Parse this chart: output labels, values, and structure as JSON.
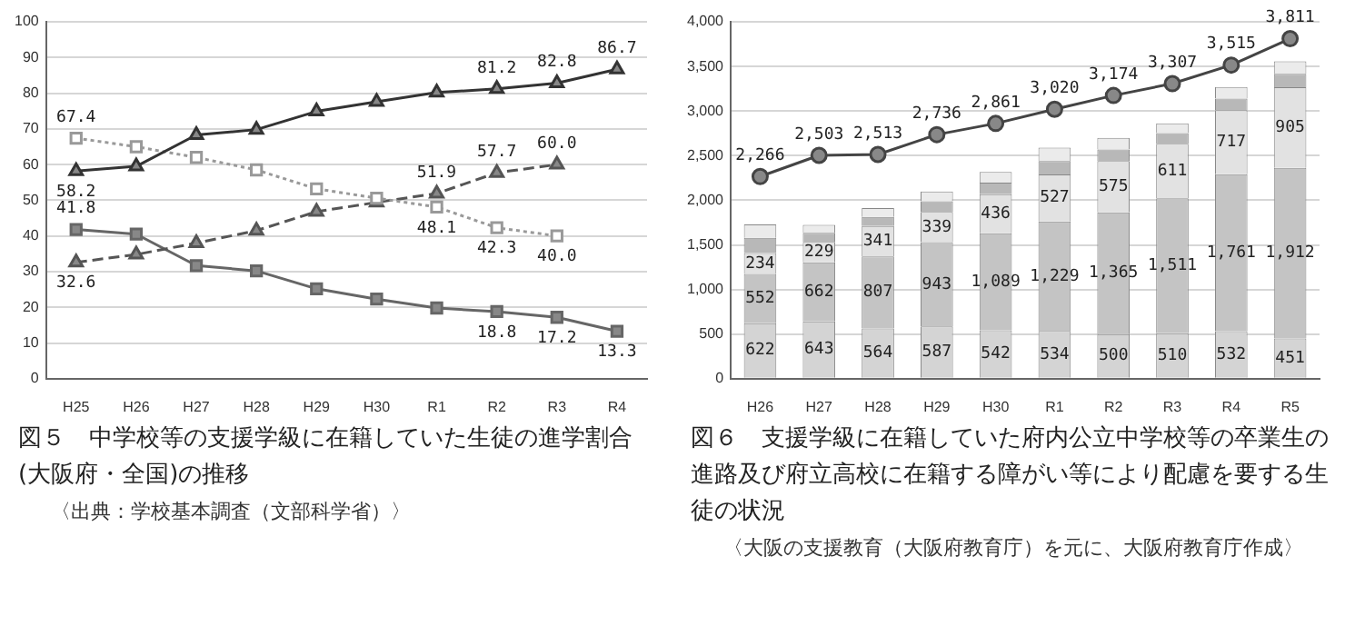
{
  "chart_data": [
    {
      "type": "line",
      "title": "図５　中学校等の支援学級に在籍していた生徒の進学割合(大阪府・全国)の推移",
      "annotations": [
        "〈出典：学校基本調査（文部科学省）〉"
      ],
      "categories": [
        "H25",
        "H26",
        "H27",
        "H28",
        "H29",
        "H30",
        "R1",
        "R2",
        "R3",
        "R4"
      ],
      "series": [
        {
          "color": "#333333",
          "marker": "triangle",
          "line_style": "solid",
          "values": [
            58.2,
            59.5,
            68.3,
            69.8,
            74.9,
            77.6,
            80.2,
            81.2,
            82.8,
            86.7
          ],
          "value_labels": [
            "58.2",
            null,
            null,
            null,
            null,
            null,
            null,
            "81.2",
            "82.8",
            "86.7"
          ]
        },
        {
          "color": "#999999",
          "marker": "square",
          "line_style": "dotted",
          "values": [
            67.4,
            65.0,
            62.0,
            58.5,
            53.2,
            50.6,
            48.1,
            42.3,
            40.0,
            null
          ],
          "value_labels": [
            "67.4",
            null,
            null,
            null,
            null,
            null,
            "48.1",
            "42.3",
            "40.0",
            null
          ]
        },
        {
          "color": "#555555",
          "marker": "triangle",
          "line_style": "dashed",
          "values": [
            32.6,
            34.8,
            38.0,
            41.5,
            46.8,
            49.4,
            51.9,
            57.7,
            60.0,
            null
          ],
          "value_labels": [
            "32.6",
            null,
            null,
            null,
            null,
            null,
            "51.9",
            "57.7",
            "60.0",
            null
          ]
        },
        {
          "color": "#666666",
          "marker": "square",
          "line_style": "solid",
          "values": [
            41.8,
            40.5,
            31.7,
            30.2,
            25.2,
            22.3,
            19.8,
            18.8,
            17.2,
            13.3
          ],
          "value_labels": [
            "41.8",
            null,
            null,
            null,
            null,
            null,
            null,
            "18.8",
            "17.2",
            "13.3"
          ]
        }
      ],
      "ylim": [
        0,
        100
      ],
      "yticks": [
        0,
        10,
        20,
        30,
        40,
        50,
        60,
        70,
        80,
        90,
        100
      ],
      "grid": "y",
      "legend": false
    },
    {
      "type": "bar",
      "title": "図６　支援学級に在籍していた府内公立中学校等の卒業生の進路及び府立高校に在籍する障がい等により配慮を要する生徒の状況",
      "annotations": [
        "〈大阪の支援教育（大阪府教育庁）を元に、大阪府教育庁作成〉"
      ],
      "categories": [
        "H26",
        "H27",
        "H28",
        "H29",
        "H30",
        "R1",
        "R2",
        "R3",
        "R4",
        "R5"
      ],
      "stacked": true,
      "series": [
        {
          "color": "#d4d4d4",
          "values": [
            622,
            643,
            564,
            587,
            542,
            534,
            500,
            510,
            532,
            451
          ],
          "value_labels": [
            "622",
            "643",
            "564",
            "587",
            "542",
            "534",
            "500",
            "510",
            "532",
            "451"
          ]
        },
        {
          "color": "#c4c4c4",
          "values": [
            552,
            662,
            807,
            943,
            1089,
            1229,
            1365,
            1511,
            1761,
            1912
          ],
          "value_labels": [
            "552",
            "662",
            "807",
            "943",
            "1,089",
            "1,229",
            "1,365",
            "1,511",
            "1,761",
            "1,912"
          ]
        },
        {
          "color": "#e2e2e2",
          "values": [
            234,
            229,
            341,
            339,
            436,
            527,
            575,
            611,
            717,
            905
          ],
          "value_labels": [
            "234",
            "229",
            "341",
            "339",
            "436",
            "527",
            "575",
            "611",
            "717",
            "905"
          ]
        },
        {
          "color": "#b8b8b8",
          "values": [
            170,
            100,
            100,
            120,
            130,
            150,
            130,
            120,
            130,
            150
          ]
        },
        {
          "color": "#ebebeb",
          "values": [
            150,
            90,
            100,
            110,
            120,
            150,
            130,
            110,
            130,
            140
          ]
        },
        {
          "type": "line",
          "color": "#444444",
          "marker": "circle",
          "line_style": "solid",
          "values": [
            2266,
            2503,
            2513,
            2736,
            2861,
            3020,
            3174,
            3307,
            3515,
            3811
          ],
          "value_labels": [
            "2,266",
            "2,503",
            "2,513",
            "2,736",
            "2,861",
            "3,020",
            "3,174",
            "3,307",
            "3,515",
            "3,811"
          ]
        }
      ],
      "ylim": [
        0,
        4000
      ],
      "yticks": [
        {
          "value": 0,
          "label": "0"
        },
        {
          "value": 500,
          "label": "500"
        },
        {
          "value": 1000,
          "label": "1,000"
        },
        {
          "value": 1500,
          "label": "1,500"
        },
        {
          "value": 2000,
          "label": "2,000"
        },
        {
          "value": 2500,
          "label": "2,500"
        },
        {
          "value": 3000,
          "label": "3,000"
        },
        {
          "value": 3500,
          "label": "3,500"
        },
        {
          "value": 4000,
          "label": "4,000"
        }
      ],
      "grid": "y",
      "legend": false
    }
  ]
}
